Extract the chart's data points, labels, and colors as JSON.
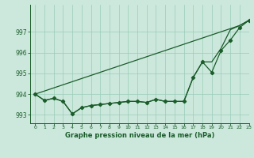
{
  "title": "Graphe pression niveau de la mer (hPa)",
  "background_color": "#cce8dc",
  "grid_color": "#99ccb8",
  "line_color": "#1a5c2a",
  "xlim": [
    -0.5,
    23
  ],
  "ylim": [
    992.6,
    998.3
  ],
  "yticks": [
    993,
    994,
    995,
    996,
    997
  ],
  "xticks": [
    0,
    1,
    2,
    3,
    4,
    5,
    6,
    7,
    8,
    9,
    10,
    11,
    12,
    13,
    14,
    15,
    16,
    17,
    18,
    19,
    20,
    21,
    22,
    23
  ],
  "series_measured": [
    994.0,
    993.7,
    993.8,
    993.65,
    993.05,
    993.35,
    993.45,
    993.5,
    993.55,
    993.6,
    993.65,
    993.65,
    993.6,
    993.75,
    993.65,
    993.65,
    993.65,
    994.8,
    995.55,
    995.05,
    996.1,
    996.6,
    997.2,
    997.55
  ],
  "series_smooth": [
    994.0,
    993.7,
    993.8,
    993.65,
    993.05,
    993.35,
    993.45,
    993.5,
    993.55,
    993.6,
    993.65,
    993.65,
    993.6,
    993.75,
    993.65,
    993.65,
    993.65,
    994.8,
    995.55,
    995.55,
    996.2,
    997.1,
    997.3,
    997.55
  ],
  "series_linear": [
    994.0,
    994.15,
    994.3,
    994.45,
    994.6,
    994.75,
    994.9,
    995.05,
    995.2,
    995.35,
    995.5,
    995.65,
    995.8,
    995.95,
    996.1,
    996.25,
    996.4,
    996.55,
    996.7,
    996.85,
    997.0,
    997.15,
    997.3,
    997.55
  ]
}
